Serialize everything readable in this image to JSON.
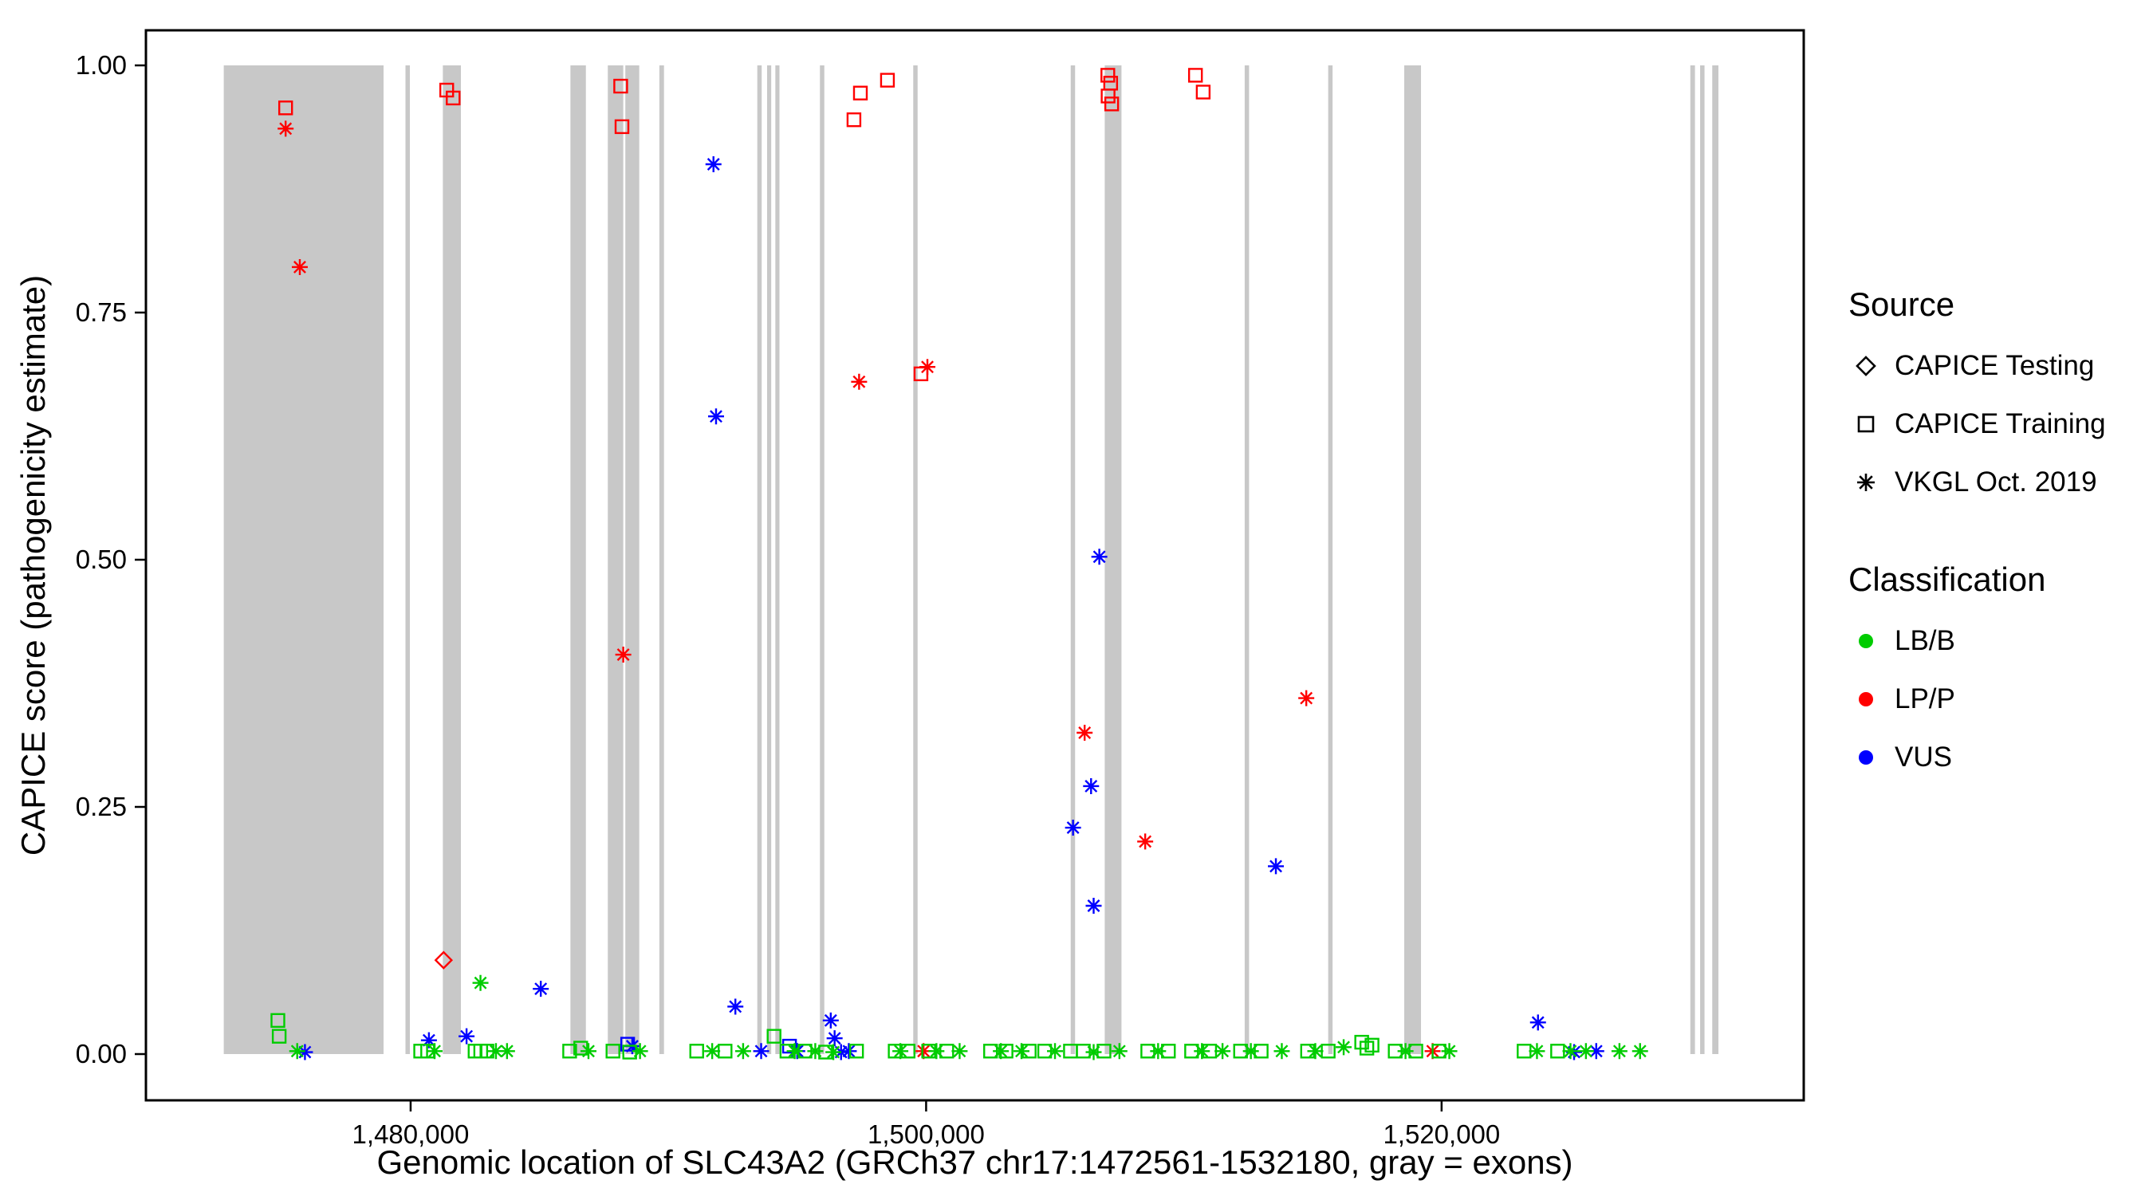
{
  "colors": {
    "LB/B": "#00CC00",
    "LP/P": "#FF0000",
    "VUS": "#0000FF",
    "exon": "#C8C8C8",
    "axis": "#000000"
  },
  "legend": {
    "source_title": "Source",
    "source_items": [
      {
        "label": "CAPICE Testing",
        "marker": "diamond"
      },
      {
        "label": "CAPICE Training",
        "marker": "square"
      },
      {
        "label": "VKGL Oct. 2019",
        "marker": "asterisk"
      }
    ],
    "classification_title": "Classification",
    "classification_items": [
      {
        "label": "LB/B",
        "color": "#00CC00"
      },
      {
        "label": "LP/P",
        "color": "#FF0000"
      },
      {
        "label": "VUS",
        "color": "#0000FF"
      }
    ]
  },
  "chart_data": {
    "type": "scatter",
    "title": "",
    "xlabel": "Genomic location of SLC43A2 (GRCh37 chr17:1472561-1532180, gray = exons)",
    "ylabel": "CAPICE score (pathogenicity estimate)",
    "xlim": [
      1469730,
      1534050
    ],
    "ylim": [
      0,
      1
    ],
    "x_ticks": [
      1480000,
      1500000,
      1520000
    ],
    "x_tick_labels": [
      "1,480,000",
      "1,500,000",
      "1,520,000"
    ],
    "y_ticks": [
      0,
      0.25,
      0.5,
      0.75,
      1.0
    ],
    "y_tick_labels": [
      "0.00",
      "0.25",
      "0.50",
      "0.75",
      "1.00"
    ],
    "legend_note": "gray vertical bands = exons",
    "exons": [
      [
        1472750,
        1478950
      ],
      [
        1479800,
        1479970
      ],
      [
        1481250,
        1481950
      ],
      [
        1486200,
        1486800
      ],
      [
        1487650,
        1488250
      ],
      [
        1488330,
        1488870
      ],
      [
        1489650,
        1489830
      ],
      [
        1493450,
        1493620
      ],
      [
        1493830,
        1493990
      ],
      [
        1494150,
        1494310
      ],
      [
        1495880,
        1496050
      ],
      [
        1499500,
        1499670
      ],
      [
        1505610,
        1505780
      ],
      [
        1506930,
        1507580
      ],
      [
        1512360,
        1512530
      ],
      [
        1515600,
        1515770
      ],
      [
        1518550,
        1519200
      ],
      [
        1529650,
        1529830
      ],
      [
        1530030,
        1530200
      ],
      [
        1530500,
        1530740
      ]
    ],
    "points": [
      {
        "x": 1475150,
        "y": 0.957,
        "s": "training",
        "c": "LP/P"
      },
      {
        "x": 1481400,
        "y": 0.975,
        "s": "training",
        "c": "LP/P"
      },
      {
        "x": 1481650,
        "y": 0.967,
        "s": "training",
        "c": "LP/P"
      },
      {
        "x": 1488150,
        "y": 0.979,
        "s": "training",
        "c": "LP/P"
      },
      {
        "x": 1488200,
        "y": 0.938,
        "s": "training",
        "c": "LP/P"
      },
      {
        "x": 1497200,
        "y": 0.945,
        "s": "training",
        "c": "LP/P"
      },
      {
        "x": 1497450,
        "y": 0.972,
        "s": "training",
        "c": "LP/P"
      },
      {
        "x": 1498500,
        "y": 0.985,
        "s": "training",
        "c": "LP/P"
      },
      {
        "x": 1499800,
        "y": 0.688,
        "s": "training",
        "c": "LP/P"
      },
      {
        "x": 1507050,
        "y": 0.99,
        "s": "training",
        "c": "LP/P"
      },
      {
        "x": 1507160,
        "y": 0.982,
        "s": "training",
        "c": "LP/P"
      },
      {
        "x": 1507060,
        "y": 0.969,
        "s": "training",
        "c": "LP/P"
      },
      {
        "x": 1507200,
        "y": 0.961,
        "s": "training",
        "c": "LP/P"
      },
      {
        "x": 1510450,
        "y": 0.99,
        "s": "training",
        "c": "LP/P"
      },
      {
        "x": 1510750,
        "y": 0.973,
        "s": "training",
        "c": "LP/P"
      },
      {
        "x": 1481280,
        "y": 0.095,
        "s": "testing",
        "c": "LP/P"
      },
      {
        "x": 1475150,
        "y": 0.936,
        "s": "vkgl",
        "c": "LP/P"
      },
      {
        "x": 1475700,
        "y": 0.796,
        "s": "vkgl",
        "c": "LP/P"
      },
      {
        "x": 1488250,
        "y": 0.404,
        "s": "vkgl",
        "c": "LP/P"
      },
      {
        "x": 1497400,
        "y": 0.68,
        "s": "vkgl",
        "c": "LP/P"
      },
      {
        "x": 1500050,
        "y": 0.695,
        "s": "vkgl",
        "c": "LP/P"
      },
      {
        "x": 1506150,
        "y": 0.325,
        "s": "vkgl",
        "c": "LP/P"
      },
      {
        "x": 1508500,
        "y": 0.215,
        "s": "vkgl",
        "c": "LP/P"
      },
      {
        "x": 1514750,
        "y": 0.36,
        "s": "vkgl",
        "c": "LP/P"
      },
      {
        "x": 1499900,
        "y": 0.003,
        "s": "vkgl",
        "c": "LP/P"
      },
      {
        "x": 1519650,
        "y": 0.003,
        "s": "vkgl",
        "c": "LP/P"
      },
      {
        "x": 1491750,
        "y": 0.9,
        "s": "vkgl",
        "c": "VUS"
      },
      {
        "x": 1491850,
        "y": 0.645,
        "s": "vkgl",
        "c": "VUS"
      },
      {
        "x": 1506720,
        "y": 0.503,
        "s": "vkgl",
        "c": "VUS"
      },
      {
        "x": 1506400,
        "y": 0.271,
        "s": "vkgl",
        "c": "VUS"
      },
      {
        "x": 1505700,
        "y": 0.229,
        "s": "vkgl",
        "c": "VUS"
      },
      {
        "x": 1506500,
        "y": 0.15,
        "s": "vkgl",
        "c": "VUS"
      },
      {
        "x": 1513570,
        "y": 0.19,
        "s": "vkgl",
        "c": "VUS"
      },
      {
        "x": 1482170,
        "y": 0.018,
        "s": "vkgl",
        "c": "VUS"
      },
      {
        "x": 1485050,
        "y": 0.066,
        "s": "vkgl",
        "c": "VUS"
      },
      {
        "x": 1492600,
        "y": 0.048,
        "s": "vkgl",
        "c": "VUS"
      },
      {
        "x": 1496300,
        "y": 0.034,
        "s": "vkgl",
        "c": "VUS"
      },
      {
        "x": 1496450,
        "y": 0.016,
        "s": "vkgl",
        "c": "VUS"
      },
      {
        "x": 1480710,
        "y": 0.014,
        "s": "vkgl",
        "c": "VUS"
      },
      {
        "x": 1488600,
        "y": 0.008,
        "s": "vkgl",
        "c": "VUS"
      },
      {
        "x": 1475900,
        "y": 0.002,
        "s": "vkgl",
        "c": "VUS"
      },
      {
        "x": 1493600,
        "y": 0.003,
        "s": "vkgl",
        "c": "VUS"
      },
      {
        "x": 1495000,
        "y": 0.003,
        "s": "vkgl",
        "c": "VUS"
      },
      {
        "x": 1496700,
        "y": 0.002,
        "s": "vkgl",
        "c": "VUS"
      },
      {
        "x": 1497000,
        "y": 0.003,
        "s": "vkgl",
        "c": "VUS"
      },
      {
        "x": 1523740,
        "y": 0.032,
        "s": "vkgl",
        "c": "VUS"
      },
      {
        "x": 1525140,
        "y": 0.002,
        "s": "vkgl",
        "c": "VUS"
      },
      {
        "x": 1526000,
        "y": 0.003,
        "s": "vkgl",
        "c": "VUS"
      },
      {
        "x": 1488420,
        "y": 0.01,
        "s": "training",
        "c": "VUS"
      },
      {
        "x": 1494700,
        "y": 0.008,
        "s": "training",
        "c": "VUS"
      },
      {
        "x": 1474850,
        "y": 0.034,
        "s": "training",
        "c": "LB/B"
      },
      {
        "x": 1474900,
        "y": 0.018,
        "s": "training",
        "c": "LB/B"
      },
      {
        "x": 1480390,
        "y": 0.003,
        "s": "training",
        "c": "LB/B"
      },
      {
        "x": 1480660,
        "y": 0.003,
        "s": "training",
        "c": "LB/B"
      },
      {
        "x": 1482500,
        "y": 0.003,
        "s": "training",
        "c": "LB/B"
      },
      {
        "x": 1482720,
        "y": 0.003,
        "s": "training",
        "c": "LB/B"
      },
      {
        "x": 1482960,
        "y": 0.003,
        "s": "training",
        "c": "LB/B"
      },
      {
        "x": 1486170,
        "y": 0.003,
        "s": "training",
        "c": "LB/B"
      },
      {
        "x": 1486600,
        "y": 0.006,
        "s": "training",
        "c": "LB/B"
      },
      {
        "x": 1487850,
        "y": 0.003,
        "s": "training",
        "c": "LB/B"
      },
      {
        "x": 1488500,
        "y": 0.002,
        "s": "training",
        "c": "LB/B"
      },
      {
        "x": 1491100,
        "y": 0.003,
        "s": "training",
        "c": "LB/B"
      },
      {
        "x": 1492200,
        "y": 0.003,
        "s": "training",
        "c": "LB/B"
      },
      {
        "x": 1494100,
        "y": 0.018,
        "s": "training",
        "c": "LB/B"
      },
      {
        "x": 1494600,
        "y": 0.003,
        "s": "training",
        "c": "LB/B"
      },
      {
        "x": 1495300,
        "y": 0.003,
        "s": "training",
        "c": "LB/B"
      },
      {
        "x": 1496100,
        "y": 0.002,
        "s": "training",
        "c": "LB/B"
      },
      {
        "x": 1497300,
        "y": 0.003,
        "s": "training",
        "c": "LB/B"
      },
      {
        "x": 1498800,
        "y": 0.003,
        "s": "training",
        "c": "LB/B"
      },
      {
        "x": 1499300,
        "y": 0.003,
        "s": "training",
        "c": "LB/B"
      },
      {
        "x": 1500100,
        "y": 0.003,
        "s": "training",
        "c": "LB/B"
      },
      {
        "x": 1500800,
        "y": 0.003,
        "s": "training",
        "c": "LB/B"
      },
      {
        "x": 1502500,
        "y": 0.003,
        "s": "training",
        "c": "LB/B"
      },
      {
        "x": 1503100,
        "y": 0.003,
        "s": "training",
        "c": "LB/B"
      },
      {
        "x": 1504000,
        "y": 0.003,
        "s": "training",
        "c": "LB/B"
      },
      {
        "x": 1504600,
        "y": 0.003,
        "s": "training",
        "c": "LB/B"
      },
      {
        "x": 1505600,
        "y": 0.003,
        "s": "training",
        "c": "LB/B"
      },
      {
        "x": 1506100,
        "y": 0.003,
        "s": "training",
        "c": "LB/B"
      },
      {
        "x": 1506900,
        "y": 0.003,
        "s": "training",
        "c": "LB/B"
      },
      {
        "x": 1508600,
        "y": 0.003,
        "s": "training",
        "c": "LB/B"
      },
      {
        "x": 1509400,
        "y": 0.003,
        "s": "training",
        "c": "LB/B"
      },
      {
        "x": 1510300,
        "y": 0.003,
        "s": "training",
        "c": "LB/B"
      },
      {
        "x": 1511000,
        "y": 0.003,
        "s": "training",
        "c": "LB/B"
      },
      {
        "x": 1512200,
        "y": 0.003,
        "s": "training",
        "c": "LB/B"
      },
      {
        "x": 1513000,
        "y": 0.003,
        "s": "training",
        "c": "LB/B"
      },
      {
        "x": 1514800,
        "y": 0.003,
        "s": "training",
        "c": "LB/B"
      },
      {
        "x": 1515600,
        "y": 0.003,
        "s": "training",
        "c": "LB/B"
      },
      {
        "x": 1516900,
        "y": 0.012,
        "s": "training",
        "c": "LB/B"
      },
      {
        "x": 1517100,
        "y": 0.006,
        "s": "training",
        "c": "LB/B"
      },
      {
        "x": 1517300,
        "y": 0.009,
        "s": "training",
        "c": "LB/B"
      },
      {
        "x": 1518200,
        "y": 0.003,
        "s": "training",
        "c": "LB/B"
      },
      {
        "x": 1519000,
        "y": 0.003,
        "s": "training",
        "c": "LB/B"
      },
      {
        "x": 1519900,
        "y": 0.003,
        "s": "training",
        "c": "LB/B"
      },
      {
        "x": 1523200,
        "y": 0.003,
        "s": "training",
        "c": "LB/B"
      },
      {
        "x": 1524500,
        "y": 0.003,
        "s": "training",
        "c": "LB/B"
      },
      {
        "x": 1475600,
        "y": 0.003,
        "s": "vkgl",
        "c": "LB/B"
      },
      {
        "x": 1480930,
        "y": 0.003,
        "s": "vkgl",
        "c": "LB/B"
      },
      {
        "x": 1482710,
        "y": 0.072,
        "s": "vkgl",
        "c": "LB/B"
      },
      {
        "x": 1483310,
        "y": 0.003,
        "s": "vkgl",
        "c": "LB/B"
      },
      {
        "x": 1483740,
        "y": 0.003,
        "s": "vkgl",
        "c": "LB/B"
      },
      {
        "x": 1486900,
        "y": 0.003,
        "s": "vkgl",
        "c": "LB/B"
      },
      {
        "x": 1488900,
        "y": 0.003,
        "s": "vkgl",
        "c": "LB/B"
      },
      {
        "x": 1491700,
        "y": 0.003,
        "s": "vkgl",
        "c": "LB/B"
      },
      {
        "x": 1492900,
        "y": 0.003,
        "s": "vkgl",
        "c": "LB/B"
      },
      {
        "x": 1494900,
        "y": 0.003,
        "s": "vkgl",
        "c": "LB/B"
      },
      {
        "x": 1495700,
        "y": 0.003,
        "s": "vkgl",
        "c": "LB/B"
      },
      {
        "x": 1496400,
        "y": 0.002,
        "s": "vkgl",
        "c": "LB/B"
      },
      {
        "x": 1499000,
        "y": 0.003,
        "s": "vkgl",
        "c": "LB/B"
      },
      {
        "x": 1500400,
        "y": 0.003,
        "s": "vkgl",
        "c": "LB/B"
      },
      {
        "x": 1501300,
        "y": 0.003,
        "s": "vkgl",
        "c": "LB/B"
      },
      {
        "x": 1502900,
        "y": 0.003,
        "s": "vkgl",
        "c": "LB/B"
      },
      {
        "x": 1503700,
        "y": 0.003,
        "s": "vkgl",
        "c": "LB/B"
      },
      {
        "x": 1505000,
        "y": 0.003,
        "s": "vkgl",
        "c": "LB/B"
      },
      {
        "x": 1506500,
        "y": 0.002,
        "s": "vkgl",
        "c": "LB/B"
      },
      {
        "x": 1507500,
        "y": 0.003,
        "s": "vkgl",
        "c": "LB/B"
      },
      {
        "x": 1509000,
        "y": 0.003,
        "s": "vkgl",
        "c": "LB/B"
      },
      {
        "x": 1510700,
        "y": 0.003,
        "s": "vkgl",
        "c": "LB/B"
      },
      {
        "x": 1511500,
        "y": 0.003,
        "s": "vkgl",
        "c": "LB/B"
      },
      {
        "x": 1512600,
        "y": 0.003,
        "s": "vkgl",
        "c": "LB/B"
      },
      {
        "x": 1513800,
        "y": 0.003,
        "s": "vkgl",
        "c": "LB/B"
      },
      {
        "x": 1515100,
        "y": 0.003,
        "s": "vkgl",
        "c": "LB/B"
      },
      {
        "x": 1516200,
        "y": 0.007,
        "s": "vkgl",
        "c": "LB/B"
      },
      {
        "x": 1518600,
        "y": 0.003,
        "s": "vkgl",
        "c": "LB/B"
      },
      {
        "x": 1520300,
        "y": 0.003,
        "s": "vkgl",
        "c": "LB/B"
      },
      {
        "x": 1523700,
        "y": 0.003,
        "s": "vkgl",
        "c": "LB/B"
      },
      {
        "x": 1525000,
        "y": 0.003,
        "s": "vkgl",
        "c": "LB/B"
      },
      {
        "x": 1525600,
        "y": 0.003,
        "s": "vkgl",
        "c": "LB/B"
      },
      {
        "x": 1526900,
        "y": 0.003,
        "s": "vkgl",
        "c": "LB/B"
      },
      {
        "x": 1527700,
        "y": 0.003,
        "s": "vkgl",
        "c": "LB/B"
      }
    ]
  }
}
